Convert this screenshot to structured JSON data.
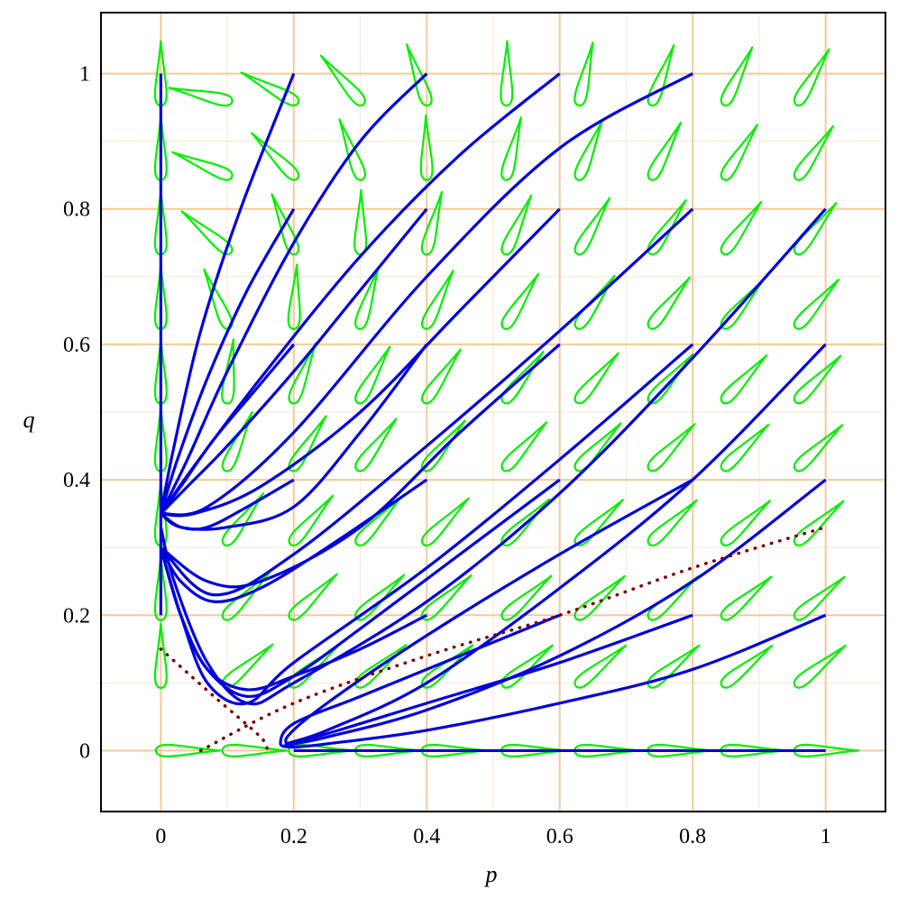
{
  "chart_data": {
    "type": "line",
    "title": "",
    "xlabel": "p",
    "ylabel": "q",
    "xlim": [
      -0.09,
      1.09
    ],
    "ylim": [
      -0.09,
      1.09
    ],
    "xticks": [
      0,
      0.2,
      0.4,
      0.6,
      0.8,
      1
    ],
    "yticks": [
      0,
      0.2,
      0.4,
      0.6,
      0.8,
      1
    ],
    "xtick_labels": [
      "0",
      "0.2",
      "0.4",
      "0.6",
      "0.8",
      "1"
    ],
    "ytick_labels": [
      "0",
      "0.2",
      "0.4",
      "0.6",
      "0.8",
      "1"
    ],
    "grid": true,
    "colors": {
      "grid_major": "#f5c99a",
      "grid_minor": "#fbe9d7",
      "trajectory": "#0000dd",
      "field_arrow": "#00ee00",
      "nullcline": "#7a0000"
    },
    "series": [
      {
        "style": "solid",
        "color": "#0000dd",
        "curves": [
          [
            [
              0,
              1
            ],
            [
              0,
              0.35
            ]
          ],
          [
            [
              0,
              0.2
            ],
            [
              0,
              0.35
            ]
          ],
          [
            [
              0.2,
              1
            ],
            [
              0.12,
              0.8
            ],
            [
              0.06,
              0.62
            ],
            [
              0.02,
              0.45
            ],
            [
              0,
              0.35
            ]
          ],
          [
            [
              0.2,
              0.8
            ],
            [
              0.13,
              0.68
            ],
            [
              0.07,
              0.55
            ],
            [
              0.025,
              0.43
            ],
            [
              0,
              0.35
            ]
          ],
          [
            [
              0.2,
              0.6
            ],
            [
              0.14,
              0.53
            ],
            [
              0.08,
              0.46
            ],
            [
              0.03,
              0.39
            ],
            [
              0,
              0.35
            ]
          ],
          [
            [
              0.2,
              0.4
            ],
            [
              0.13,
              0.36
            ],
            [
              0.07,
              0.33
            ],
            [
              0.03,
              0.33
            ],
            [
              0,
              0.35
            ]
          ],
          [
            [
              0.4,
              1
            ],
            [
              0.3,
              0.9
            ],
            [
              0.2,
              0.75
            ],
            [
              0.1,
              0.56
            ],
            [
              0.04,
              0.43
            ],
            [
              0,
              0.35
            ]
          ],
          [
            [
              0.4,
              0.8
            ],
            [
              0.3,
              0.68
            ],
            [
              0.2,
              0.56
            ],
            [
              0.1,
              0.45
            ],
            [
              0.04,
              0.39
            ],
            [
              0,
              0.35
            ]
          ],
          [
            [
              0.4,
              0.6
            ],
            [
              0.3,
              0.47
            ],
            [
              0.2,
              0.36
            ],
            [
              0.1,
              0.33
            ],
            [
              0.03,
              0.33
            ],
            [
              0,
              0.35
            ]
          ],
          [
            [
              0.4,
              0.4
            ],
            [
              0.25,
              0.3
            ],
            [
              0.15,
              0.24
            ],
            [
              0.08,
              0.22
            ],
            [
              0.03,
              0.25
            ],
            [
              0,
              0.3
            ]
          ],
          [
            [
              0.4,
              0.2
            ],
            [
              0.3,
              0.15
            ],
            [
              0.2,
              0.11
            ],
            [
              0.13,
              0.09
            ],
            [
              0.07,
              0.12
            ],
            [
              0.03,
              0.2
            ],
            [
              0,
              0.3
            ]
          ],
          [
            [
              0.6,
              1
            ],
            [
              0.45,
              0.88
            ],
            [
              0.3,
              0.73
            ],
            [
              0.15,
              0.55
            ],
            [
              0.05,
              0.42
            ],
            [
              0,
              0.35
            ]
          ],
          [
            [
              0.6,
              0.8
            ],
            [
              0.45,
              0.65
            ],
            [
              0.3,
              0.5
            ],
            [
              0.15,
              0.39
            ],
            [
              0.05,
              0.35
            ],
            [
              0,
              0.35
            ]
          ],
          [
            [
              0.6,
              0.6
            ],
            [
              0.45,
              0.47
            ],
            [
              0.3,
              0.33
            ],
            [
              0.15,
              0.25
            ],
            [
              0.07,
              0.25
            ],
            [
              0,
              0.3
            ]
          ],
          [
            [
              0.6,
              0.4
            ],
            [
              0.45,
              0.29
            ],
            [
              0.3,
              0.18
            ],
            [
              0.2,
              0.11
            ],
            [
              0.13,
              0.08
            ],
            [
              0.07,
              0.12
            ],
            [
              0.03,
              0.2
            ],
            [
              0,
              0.3
            ]
          ],
          [
            [
              0.6,
              0.2
            ],
            [
              0.45,
              0.14
            ],
            [
              0.3,
              0.08
            ],
            [
              0.2,
              0.04
            ],
            [
              0.18,
              0.01
            ],
            [
              0.2,
              0.005
            ]
          ],
          [
            [
              0.8,
              1
            ],
            [
              0.6,
              0.89
            ],
            [
              0.4,
              0.7
            ],
            [
              0.2,
              0.47
            ],
            [
              0.07,
              0.36
            ],
            [
              0,
              0.35
            ]
          ],
          [
            [
              0.8,
              0.8
            ],
            [
              0.6,
              0.62
            ],
            [
              0.4,
              0.45
            ],
            [
              0.2,
              0.29
            ],
            [
              0.08,
              0.23
            ],
            [
              0,
              0.3
            ]
          ],
          [
            [
              0.8,
              0.6
            ],
            [
              0.6,
              0.43
            ],
            [
              0.4,
              0.27
            ],
            [
              0.2,
              0.13
            ],
            [
              0.13,
              0.07
            ],
            [
              0.07,
              0.1
            ],
            [
              0.03,
              0.2
            ],
            [
              0,
              0.3
            ]
          ],
          [
            [
              0.8,
              0.4
            ],
            [
              0.6,
              0.29
            ],
            [
              0.4,
              0.17
            ],
            [
              0.25,
              0.07
            ],
            [
              0.19,
              0.02
            ],
            [
              0.2,
              0.005
            ]
          ],
          [
            [
              0.8,
              0.2
            ],
            [
              0.6,
              0.13
            ],
            [
              0.4,
              0.07
            ],
            [
              0.25,
              0.025
            ],
            [
              0.19,
              0.01
            ],
            [
              0.2,
              0.005
            ]
          ],
          [
            [
              1,
              0.8
            ],
            [
              0.8,
              0.58
            ],
            [
              0.6,
              0.38
            ],
            [
              0.4,
              0.22
            ],
            [
              0.2,
              0.1
            ],
            [
              0.13,
              0.07
            ],
            [
              0.07,
              0.13
            ],
            [
              0.02,
              0.25
            ],
            [
              0,
              0.33
            ]
          ],
          [
            [
              1,
              0.6
            ],
            [
              0.8,
              0.4
            ],
            [
              0.6,
              0.24
            ],
            [
              0.4,
              0.1
            ],
            [
              0.25,
              0.03
            ],
            [
              0.19,
              0.01
            ],
            [
              0.2,
              0.005
            ]
          ],
          [
            [
              1,
              0.4
            ],
            [
              0.8,
              0.25
            ],
            [
              0.6,
              0.14
            ],
            [
              0.4,
              0.06
            ],
            [
              0.25,
              0.02
            ],
            [
              0.19,
              0.008
            ],
            [
              0.2,
              0.005
            ]
          ],
          [
            [
              1,
              0.2
            ],
            [
              0.8,
              0.12
            ],
            [
              0.6,
              0.07
            ],
            [
              0.4,
              0.03
            ],
            [
              0.25,
              0.01
            ],
            [
              0.2,
              0.005
            ]
          ],
          [
            [
              1,
              0
            ],
            [
              0.2,
              0
            ]
          ]
        ]
      },
      {
        "style": "dotted",
        "color": "#7a0000",
        "curves": [
          [
            [
              0.06,
              0
            ],
            [
              0.2,
              0.07
            ],
            [
              0.4,
              0.14
            ],
            [
              0.6,
              0.2
            ],
            [
              0.8,
              0.27
            ],
            [
              1,
              0.33
            ]
          ],
          [
            [
              0,
              0.15
            ],
            [
              0.08,
              0.08
            ],
            [
              0.15,
              0.02
            ],
            [
              0.16,
              0
            ]
          ]
        ]
      }
    ],
    "field_arrows": {
      "x": [
        0,
        0.1,
        0.2,
        0.3,
        0.4,
        0.52,
        0.63,
        0.74,
        0.85,
        0.96
      ],
      "y": [
        0,
        0.1,
        0.2,
        0.31,
        0.42,
        0.52,
        0.63,
        0.74,
        0.85,
        0.96
      ],
      "color": "#00ee00"
    }
  }
}
